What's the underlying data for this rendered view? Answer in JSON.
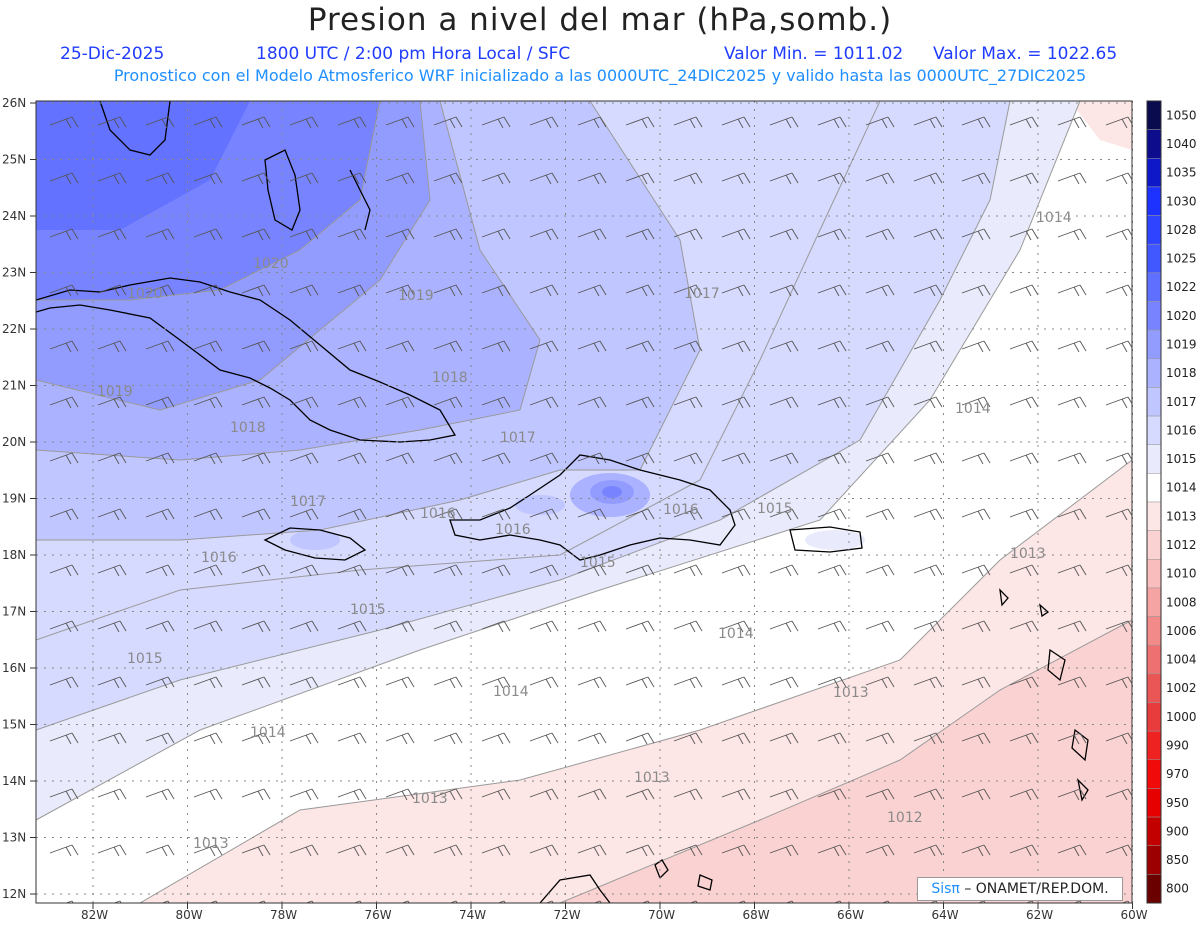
{
  "header": {
    "title": "Presion a nivel del mar (hPa,somb.)",
    "date": "25-Dic-2025",
    "time": "1800 UTC / 2:00 pm Hora Local / SFC",
    "min_value": "Valor Min. = 1011.02",
    "max_value": "Valor Max. = 1022.65",
    "description": "Pronostico con el Modelo Atmosferico WRF inicializado a las 0000UTC_24DIC2025 y valido hasta las  0000UTC_27DIC2025"
  },
  "axes": {
    "lat_labels": [
      "26N",
      "25N",
      "24N",
      "23N",
      "22N",
      "21N",
      "20N",
      "19N",
      "18N",
      "17N",
      "16N",
      "15N",
      "14N",
      "13N",
      "12N"
    ],
    "lon_labels": [
      "82W",
      "80W",
      "78W",
      "76W",
      "74W",
      "72W",
      "70W",
      "68W",
      "66W",
      "64W",
      "62W",
      "60W"
    ]
  },
  "colorbar": {
    "levels": [
      "1050",
      "1040",
      "1035",
      "1030",
      "1028",
      "1025",
      "1022",
      "1020",
      "1019",
      "1018",
      "1017",
      "1016",
      "1015",
      "1014",
      "1013",
      "1012",
      "1010",
      "1008",
      "1006",
      "1004",
      "1002",
      "1000",
      "990",
      "970",
      "950",
      "900",
      "850",
      "800"
    ],
    "colors": [
      "#0a0a4e",
      "#0c0c8c",
      "#0f18c8",
      "#1e32ff",
      "#2e44ff",
      "#4157ff",
      "#5f6fff",
      "#7884ff",
      "#929cff",
      "#abb2ff",
      "#c0c6ff",
      "#d6daff",
      "#e9ebfc",
      "#ffffff",
      "#fde6e6",
      "#fbd2d2",
      "#f9bdbd",
      "#f6a3a3",
      "#f28a8a",
      "#ee7070",
      "#ea5656",
      "#e83b3b",
      "#ef2222",
      "#f00a0a",
      "#e60000",
      "#c20000",
      "#9c0000",
      "#6a0000"
    ]
  },
  "contour_labels": [
    "1020",
    "1020",
    "1019",
    "1019",
    "1018",
    "1018",
    "1017",
    "1017",
    "1017",
    "1016",
    "1016",
    "1016",
    "1016",
    "1015",
    "1015",
    "1015",
    "1015",
    "1014",
    "1014",
    "1014",
    "1014",
    "1014",
    "1013",
    "1013",
    "1013",
    "1013",
    "1013",
    "1012"
  ],
  "credit": {
    "brand": "Sisπ",
    "text": "– ONAMET/REP.DOM."
  }
}
